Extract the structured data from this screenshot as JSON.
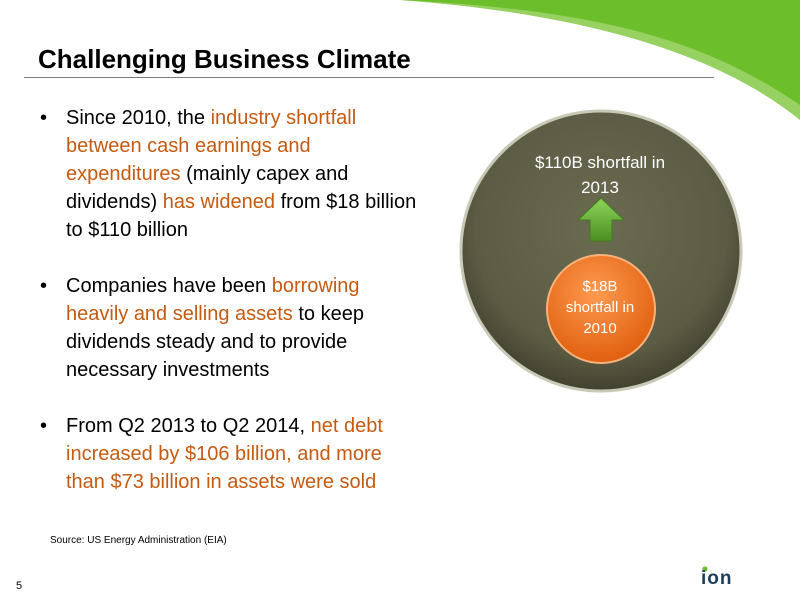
{
  "slide": {
    "title": "Challenging Business Climate",
    "bullets": [
      [
        {
          "text": "Since 2010, the ",
          "highlight": false
        },
        {
          "text": "industry shortfall between cash earnings and expenditures",
          "highlight": true
        },
        {
          "text": " (mainly capex and dividends) ",
          "highlight": false
        },
        {
          "text": "has widened",
          "highlight": true
        },
        {
          "text": " from $18 billion to $110 billion",
          "highlight": false
        }
      ],
      [
        {
          "text": "Companies have been ",
          "highlight": false
        },
        {
          "text": "borrowing heavily and selling assets",
          "highlight": true
        },
        {
          "text": " to keep dividends steady and to provide necessary investments",
          "highlight": false
        }
      ],
      [
        {
          "text": "From Q2 2013 to Q2 2014, ",
          "highlight": false
        },
        {
          "text": "net debt increased by $106 billion, and more than $73 billion in assets were sold",
          "highlight": true
        }
      ]
    ],
    "source": "Source:  US Energy Administration (EIA)",
    "page_number": "5"
  },
  "diagram": {
    "outer_label": "$110B shortfall in 2013",
    "inner_label": "$18B shortfall in 2010"
  },
  "colors": {
    "highlight": "#c55a11",
    "outer_circle": "#5e5e46",
    "inner_circle": "#f07020",
    "arrow": "#5aa02a",
    "accent_green": "#6cbf2a",
    "logo": "#1e3d5c"
  },
  "logo": {
    "text": "ion"
  }
}
